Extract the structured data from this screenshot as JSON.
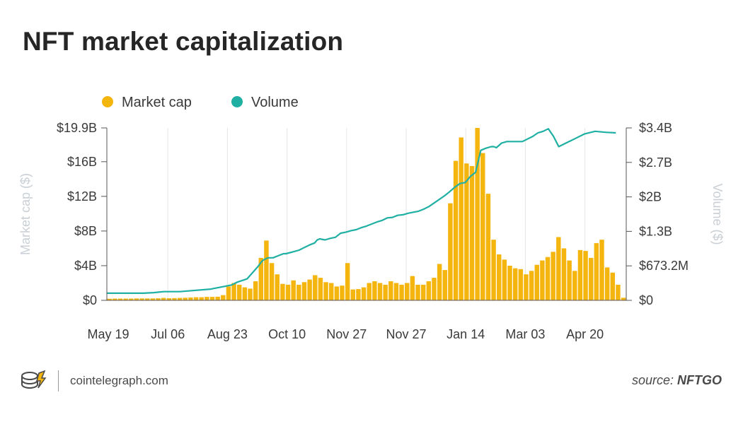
{
  "title": "NFT market capitalization",
  "footer": {
    "site": "cointelegraph.com",
    "source_label": "source:",
    "source_name": "NFTGO"
  },
  "colors": {
    "market_cap": "#f5b50f",
    "volume": "#1fb0a3",
    "title": "#262626",
    "axis_title": "#c9cfd4"
  },
  "chart_data": {
    "type": "bar",
    "xlabel": "",
    "ylabel": "Market cap ($)",
    "y2label": "Volume ($)",
    "grid": "vertical",
    "legend_position": "top-left",
    "x_tick_labels": [
      "May 19",
      "Jul 06",
      "Aug 23",
      "Oct 10",
      "Nov 27",
      "Nov 27",
      "Jan 14",
      "Mar 03",
      "Apr 20"
    ],
    "y_ticks": {
      "labels": [
        "$0",
        "$4B",
        "$8B",
        "$12B",
        "$16B",
        "$19.9B"
      ],
      "values": [
        0,
        4,
        8,
        12,
        16,
        19.9
      ]
    },
    "y2_ticks": {
      "labels": [
        "$0",
        "$673.2M",
        "$1.3B",
        "$2B",
        "$2.7B",
        "$3.4B"
      ],
      "values": [
        0,
        0.6732,
        1.3464,
        2.0196,
        2.6928,
        3.366
      ]
    },
    "ylim": [
      0,
      19.9
    ],
    "y2lim": [
      0,
      3.366
    ],
    "units": {
      "y": "billions USD",
      "y2": "billions USD"
    },
    "series": [
      {
        "name": "Market cap",
        "type": "bar",
        "axis": "left",
        "values": [
          0.18,
          0.2,
          0.2,
          0.2,
          0.2,
          0.22,
          0.22,
          0.22,
          0.22,
          0.24,
          0.28,
          0.24,
          0.26,
          0.28,
          0.3,
          0.33,
          0.36,
          0.36,
          0.4,
          0.4,
          0.42,
          0.6,
          1.6,
          2.0,
          1.8,
          1.5,
          1.35,
          2.2,
          4.9,
          6.9,
          4.3,
          3.0,
          1.9,
          1.8,
          2.3,
          1.8,
          2.1,
          2.4,
          2.9,
          2.6,
          2.1,
          2.0,
          1.6,
          1.7,
          4.3,
          1.25,
          1.3,
          1.5,
          2.0,
          2.2,
          2.0,
          1.8,
          2.2,
          2.0,
          1.8,
          2.0,
          2.8,
          1.8,
          1.8,
          2.2,
          2.6,
          4.2,
          3.5,
          11.2,
          16.1,
          18.8,
          15.8,
          15.5,
          19.9,
          17.0,
          12.3,
          7.0,
          5.3,
          4.7,
          4.0,
          3.7,
          3.6,
          3.0,
          3.4,
          4.1,
          4.6,
          5.0,
          5.6,
          7.3,
          6.0,
          4.6,
          3.4,
          5.8,
          5.7,
          4.9,
          6.6,
          7.0,
          3.8,
          3.2,
          1.8,
          0.3
        ]
      },
      {
        "name": "Volume",
        "type": "line",
        "axis": "right",
        "values": [
          0.14,
          0.14,
          0.14,
          0.145,
          0.15,
          0.16,
          0.17,
          0.17,
          0.17,
          0.17,
          0.22,
          0.26,
          0.3,
          0.35,
          0.42,
          0.65,
          0.78,
          0.83,
          0.83,
          0.87,
          0.91,
          0.91,
          0.95,
          0.98,
          1.03,
          1.08,
          1.12,
          1.18,
          1.2,
          1.18,
          1.21,
          1.23,
          1.31,
          1.33,
          1.36,
          1.38,
          1.42,
          1.45,
          1.49,
          1.53,
          1.56,
          1.61,
          1.62,
          1.66,
          1.67,
          1.7,
          1.72,
          1.74,
          1.78,
          1.83,
          1.9,
          2.04,
          2.12,
          2.21,
          2.28,
          2.3,
          2.42,
          2.5,
          2.93,
          2.97,
          3.0,
          3.0,
          2.98,
          3.07,
          3.1,
          3.1,
          3.1,
          3.15,
          3.2,
          3.27,
          3.3,
          3.35,
          3.2,
          3.0,
          3.05,
          3.1,
          3.15,
          3.25,
          3.3,
          3.28,
          3.27
        ]
      }
    ],
    "volume_x_positions": [
      0,
      0.06,
      0.07,
      0.08,
      0.09,
      0.1,
      0.11,
      0.12,
      0.13,
      0.14,
      0.2,
      0.22,
      0.24,
      0.25,
      0.27,
      0.29,
      0.3,
      0.31,
      0.32,
      0.33,
      0.34,
      0.345,
      0.36,
      0.37,
      0.38,
      0.39,
      0.4,
      0.405,
      0.41,
      0.42,
      0.43,
      0.44,
      0.45,
      0.46,
      0.47,
      0.48,
      0.49,
      0.5,
      0.51,
      0.52,
      0.53,
      0.54,
      0.55,
      0.56,
      0.57,
      0.58,
      0.59,
      0.6,
      0.61,
      0.62,
      0.63,
      0.65,
      0.66,
      0.67,
      0.68,
      0.69,
      0.7,
      0.71,
      0.72,
      0.73,
      0.74,
      0.745,
      0.75,
      0.76,
      0.77,
      0.78,
      0.8,
      0.81,
      0.82,
      0.83,
      0.84,
      0.85,
      0.86,
      0.87,
      0.88,
      0.89,
      0.9,
      0.92,
      0.94,
      0.96,
      0.98
    ]
  }
}
